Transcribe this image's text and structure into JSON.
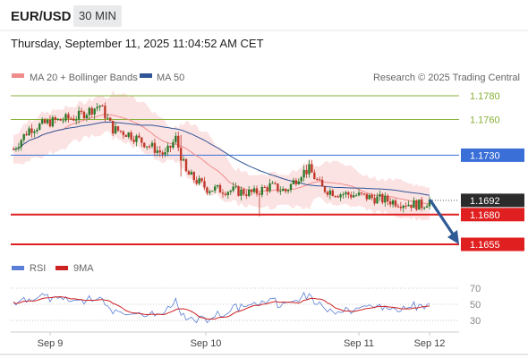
{
  "header": {
    "pair": "EUR/USD",
    "timeframe": "30 MIN",
    "timestamp": "Thursday, September 11, 2025 11:04:52 AM CET"
  },
  "legend": {
    "bollinger": "MA 20 + Bollinger Bands",
    "ma50": "MA 50",
    "source": "Research © 2025 Trading Central",
    "rsi": "RSI",
    "ma9": "9MA"
  },
  "colors": {
    "bollinger": "#f08c8c",
    "band_fill": "#fbdede",
    "ma50": "#2f5597",
    "green_level": "#8ab13a",
    "resistance": "#3a6fd8",
    "support": "#e02020",
    "current": "#2b2b2b",
    "arrow": "#2f5a96",
    "rsi": "#5b7fd6",
    "rsi_ma": "#cc2222",
    "candle_up": "#2c7a2c",
    "candle_down": "#c0392b"
  },
  "chart_data": {
    "type": "candlestick",
    "ylim": [
      1.1645,
      1.179
    ],
    "xaxis": {
      "tick_labels": [
        "Sep 9",
        "Sep 10",
        "Sep 11",
        "Sep 12"
      ]
    },
    "levels": [
      {
        "value": 1.178,
        "label": "1.1780",
        "kind": "target"
      },
      {
        "value": 1.176,
        "label": "1.1760",
        "kind": "target"
      },
      {
        "value": 1.173,
        "label": "1.1730",
        "kind": "resistance"
      },
      {
        "value": 1.1692,
        "label": "1.1692",
        "kind": "current"
      },
      {
        "value": 1.168,
        "label": "1.1680",
        "kind": "support"
      },
      {
        "value": 1.1655,
        "label": "1.1655",
        "kind": "support"
      }
    ],
    "forecast": {
      "from": 1.1692,
      "to": 1.1655
    },
    "rsi": {
      "ylim": [
        20,
        80
      ],
      "ticks": [
        70,
        50,
        30
      ]
    }
  }
}
